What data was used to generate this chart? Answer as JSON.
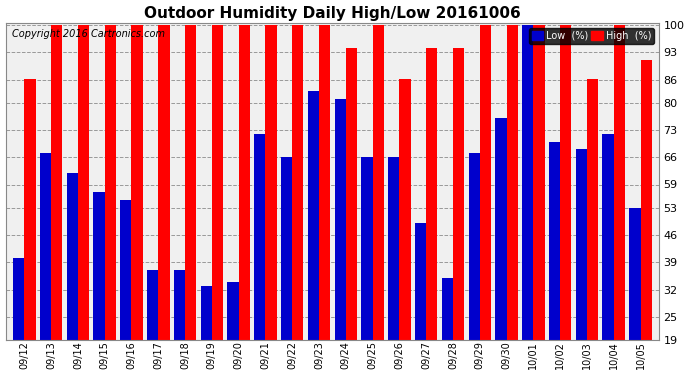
{
  "title": "Outdoor Humidity Daily High/Low 20161006",
  "copyright": "Copyright 2016 Cartronics.com",
  "dates": [
    "09/12",
    "09/13",
    "09/14",
    "09/15",
    "09/16",
    "09/17",
    "09/18",
    "09/19",
    "09/20",
    "09/21",
    "09/22",
    "09/23",
    "09/24",
    "09/25",
    "09/26",
    "09/27",
    "09/28",
    "09/29",
    "09/30",
    "10/01",
    "10/02",
    "10/03",
    "10/04",
    "10/05"
  ],
  "high": [
    86,
    100,
    100,
    100,
    100,
    100,
    100,
    100,
    100,
    100,
    100,
    100,
    94,
    100,
    86,
    94,
    94,
    100,
    100,
    100,
    100,
    86,
    100,
    91
  ],
  "low": [
    40,
    67,
    62,
    57,
    55,
    37,
    37,
    33,
    34,
    72,
    66,
    83,
    81,
    66,
    66,
    49,
    35,
    67,
    76,
    100,
    70,
    68,
    72,
    53
  ],
  "high_color": "#ff0000",
  "low_color": "#0000cc",
  "bg_color": "#ffffff",
  "plot_bg_color": "#f0f0f0",
  "grid_color": "#999999",
  "ylim_min": 19,
  "ylim_max": 100,
  "yticks": [
    19,
    25,
    32,
    39,
    46,
    53,
    59,
    66,
    73,
    80,
    86,
    93,
    100
  ],
  "title_fontsize": 11,
  "copyright_fontsize": 7,
  "legend_label_low": "Low  (%)",
  "legend_label_high": "High  (%)"
}
